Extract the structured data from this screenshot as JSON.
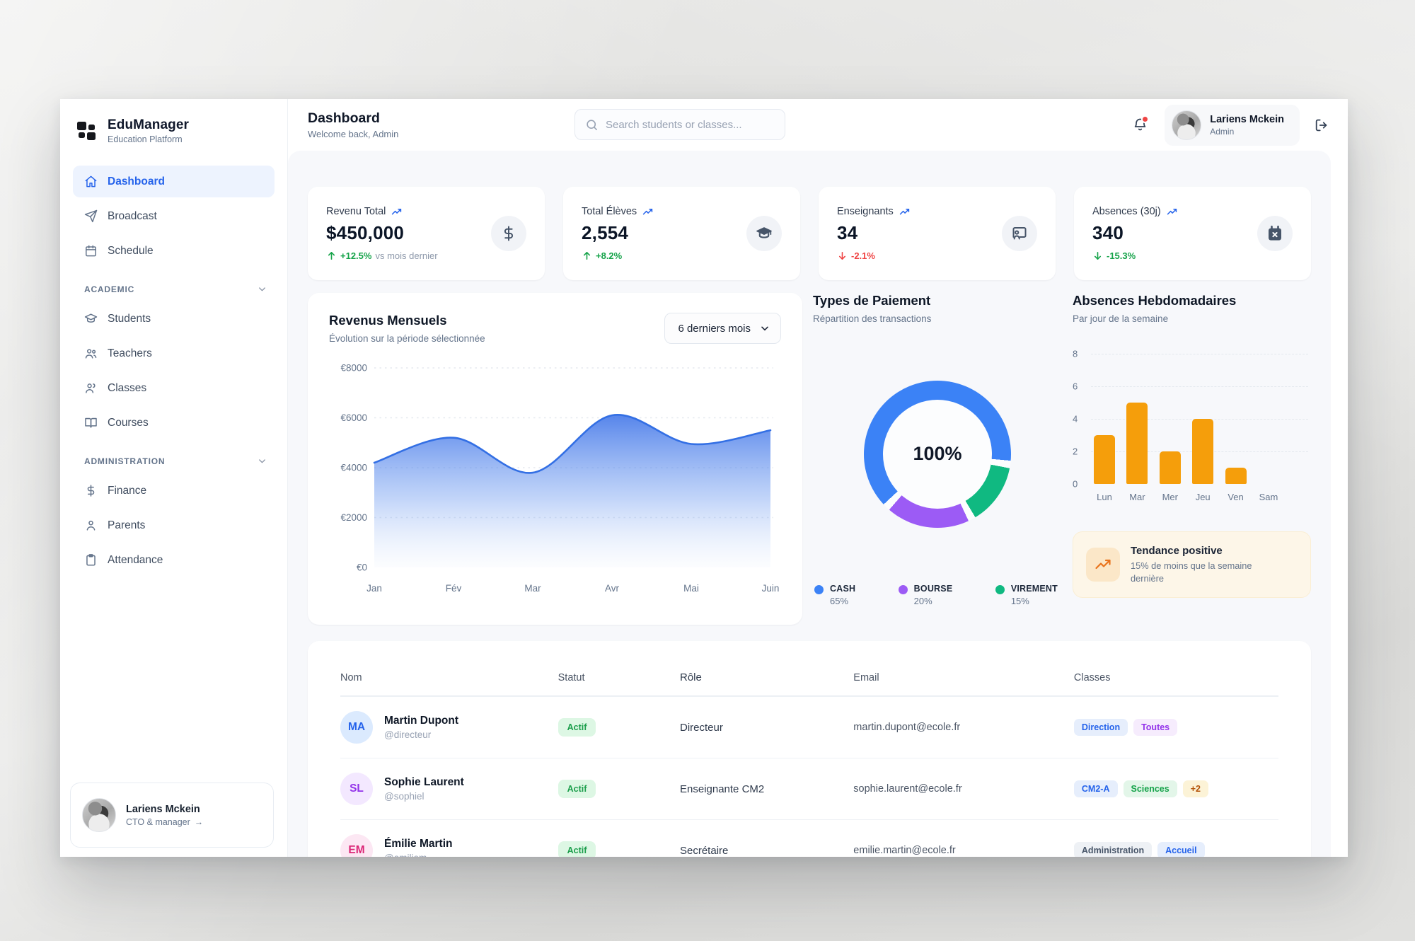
{
  "app": {
    "name": "EduManager",
    "tagline": "Education Platform"
  },
  "header": {
    "title": "Dashboard",
    "subtitle": "Welcome back, Admin",
    "search_placeholder": "Search students or classes...",
    "user": {
      "name": "Lariens Mckein",
      "role": "Admin"
    }
  },
  "sidebar": {
    "items_top": [
      {
        "label": "Dashboard",
        "icon": "home",
        "active": true
      },
      {
        "label": "Broadcast",
        "icon": "send",
        "active": false
      },
      {
        "label": "Schedule",
        "icon": "calendar",
        "active": false
      }
    ],
    "sections": [
      {
        "label": "ACADEMIC",
        "items": [
          {
            "label": "Students",
            "icon": "grad-cap"
          },
          {
            "label": "Teachers",
            "icon": "users"
          },
          {
            "label": "Classes",
            "icon": "user-group"
          },
          {
            "label": "Courses",
            "icon": "book"
          }
        ]
      },
      {
        "label": "ADMINISTRATION",
        "items": [
          {
            "label": "Finance",
            "icon": "dollar"
          },
          {
            "label": "Parents",
            "icon": "user"
          },
          {
            "label": "Attendance",
            "icon": "clipboard"
          }
        ]
      }
    ],
    "profile": {
      "name": "Lariens Mckein",
      "role": "CTO & manager"
    }
  },
  "stats": [
    {
      "title": "Revenu Total",
      "value": "$450,000",
      "delta": "+12.5%",
      "dir": "up",
      "tone": "green",
      "suffix": "vs mois dernier",
      "icon": "dollar"
    },
    {
      "title": "Total Élèves",
      "value": "2,554",
      "delta": "+8.2%",
      "dir": "up",
      "tone": "green",
      "suffix": "",
      "icon": "grad-cap-fill"
    },
    {
      "title": "Enseignants",
      "value": "34",
      "delta": "-2.1%",
      "dir": "down",
      "tone": "red",
      "suffix": "",
      "icon": "teacher-board"
    },
    {
      "title": "Absences (30j)",
      "value": "340",
      "delta": "-15.3%",
      "dir": "down",
      "tone": "green",
      "suffix": "",
      "icon": "calendar-x"
    }
  ],
  "revenue_card": {
    "title": "Revenus Mensuels",
    "subtitle": "Évolution sur la période sélectionnée",
    "period_select": "6 derniers mois"
  },
  "payment_card": {
    "title": "Types de Paiement",
    "subtitle": "Répartition des transactions",
    "center_label": "100%"
  },
  "absence_card": {
    "title": "Absences Hebdomadaires",
    "subtitle": "Par jour de la semaine"
  },
  "trend_banner": {
    "title": "Tendance positive",
    "text": "15% de moins que la semaine dernière"
  },
  "table": {
    "headers": [
      "Nom",
      "Statut",
      "Rôle",
      "Email",
      "Classes"
    ],
    "rows": [
      {
        "initials": "MA",
        "avatar_bg": "#dbeafe",
        "avatar_color": "#2563eb",
        "name": "Martin Dupont",
        "handle": "@directeur",
        "status": "Actif",
        "role": "Directeur",
        "email": "martin.dupont@ecole.fr",
        "tags": [
          {
            "label": "Direction",
            "bg": "#e6eefc",
            "color": "#2563eb"
          },
          {
            "label": "Toutes",
            "bg": "#f6ecfd",
            "color": "#9333ea"
          }
        ]
      },
      {
        "initials": "SL",
        "avatar_bg": "#f3e8ff",
        "avatar_color": "#9333ea",
        "name": "Sophie Laurent",
        "handle": "@sophiel",
        "status": "Actif",
        "role": "Enseignante CM2",
        "email": "sophie.laurent@ecole.fr",
        "tags": [
          {
            "label": "CM2-A",
            "bg": "#e6eefc",
            "color": "#2563eb"
          },
          {
            "label": "Sciences",
            "bg": "#e3f6e9",
            "color": "#16a34a"
          },
          {
            "label": "+2",
            "bg": "#fcf3d7",
            "color": "#b45309"
          }
        ]
      },
      {
        "initials": "EM",
        "avatar_bg": "#fce7f3",
        "avatar_color": "#db2777",
        "name": "Émilie Martin",
        "handle": "@emiliem",
        "status": "Actif",
        "role": "Secrétaire",
        "email": "emilie.martin@ecole.fr",
        "tags": [
          {
            "label": "Administration",
            "bg": "#eef1f5",
            "color": "#475569"
          },
          {
            "label": "Accueil",
            "bg": "#e6eefc",
            "color": "#2563eb"
          }
        ]
      }
    ]
  },
  "chart_data": [
    {
      "type": "area",
      "title": "Revenus Mensuels",
      "x": [
        "Jan",
        "Fév",
        "Mar",
        "Avr",
        "Mai",
        "Juin"
      ],
      "values": [
        4200,
        5200,
        3800,
        6100,
        4950,
        5500
      ],
      "ylabel_prefix": "€",
      "ylim": [
        0,
        8000
      ],
      "yticks": [
        0,
        2000,
        4000,
        6000,
        8000
      ],
      "grid": "dashed-horizontal",
      "legend": "none",
      "color": "#3b82f6"
    },
    {
      "type": "pie",
      "subtype": "donut",
      "title": "Types de Paiement",
      "center_label": "100%",
      "segments": [
        {
          "label": "CASH",
          "value": 65,
          "color": "#3b82f6"
        },
        {
          "label": "BOURSE",
          "value": 20,
          "color": "#9c5bf5"
        },
        {
          "label": "VIREMENT",
          "value": 15,
          "color": "#10b981"
        }
      ],
      "clockwise_order": [
        "CASH",
        "VIREMENT",
        "BOURSE"
      ],
      "start_angle_deg": 227,
      "legend": "bottom"
    },
    {
      "type": "bar",
      "title": "Absences Hebdomadaires",
      "categories": [
        "Lun",
        "Mar",
        "Mer",
        "Jeu",
        "Ven",
        "Sam"
      ],
      "values": [
        3,
        5,
        2,
        4,
        1,
        0
      ],
      "ylim": [
        0,
        8
      ],
      "yticks": [
        0,
        2,
        4,
        6,
        8
      ],
      "grid": "dashed-horizontal",
      "legend": "none",
      "color": "#f59e0b"
    }
  ]
}
